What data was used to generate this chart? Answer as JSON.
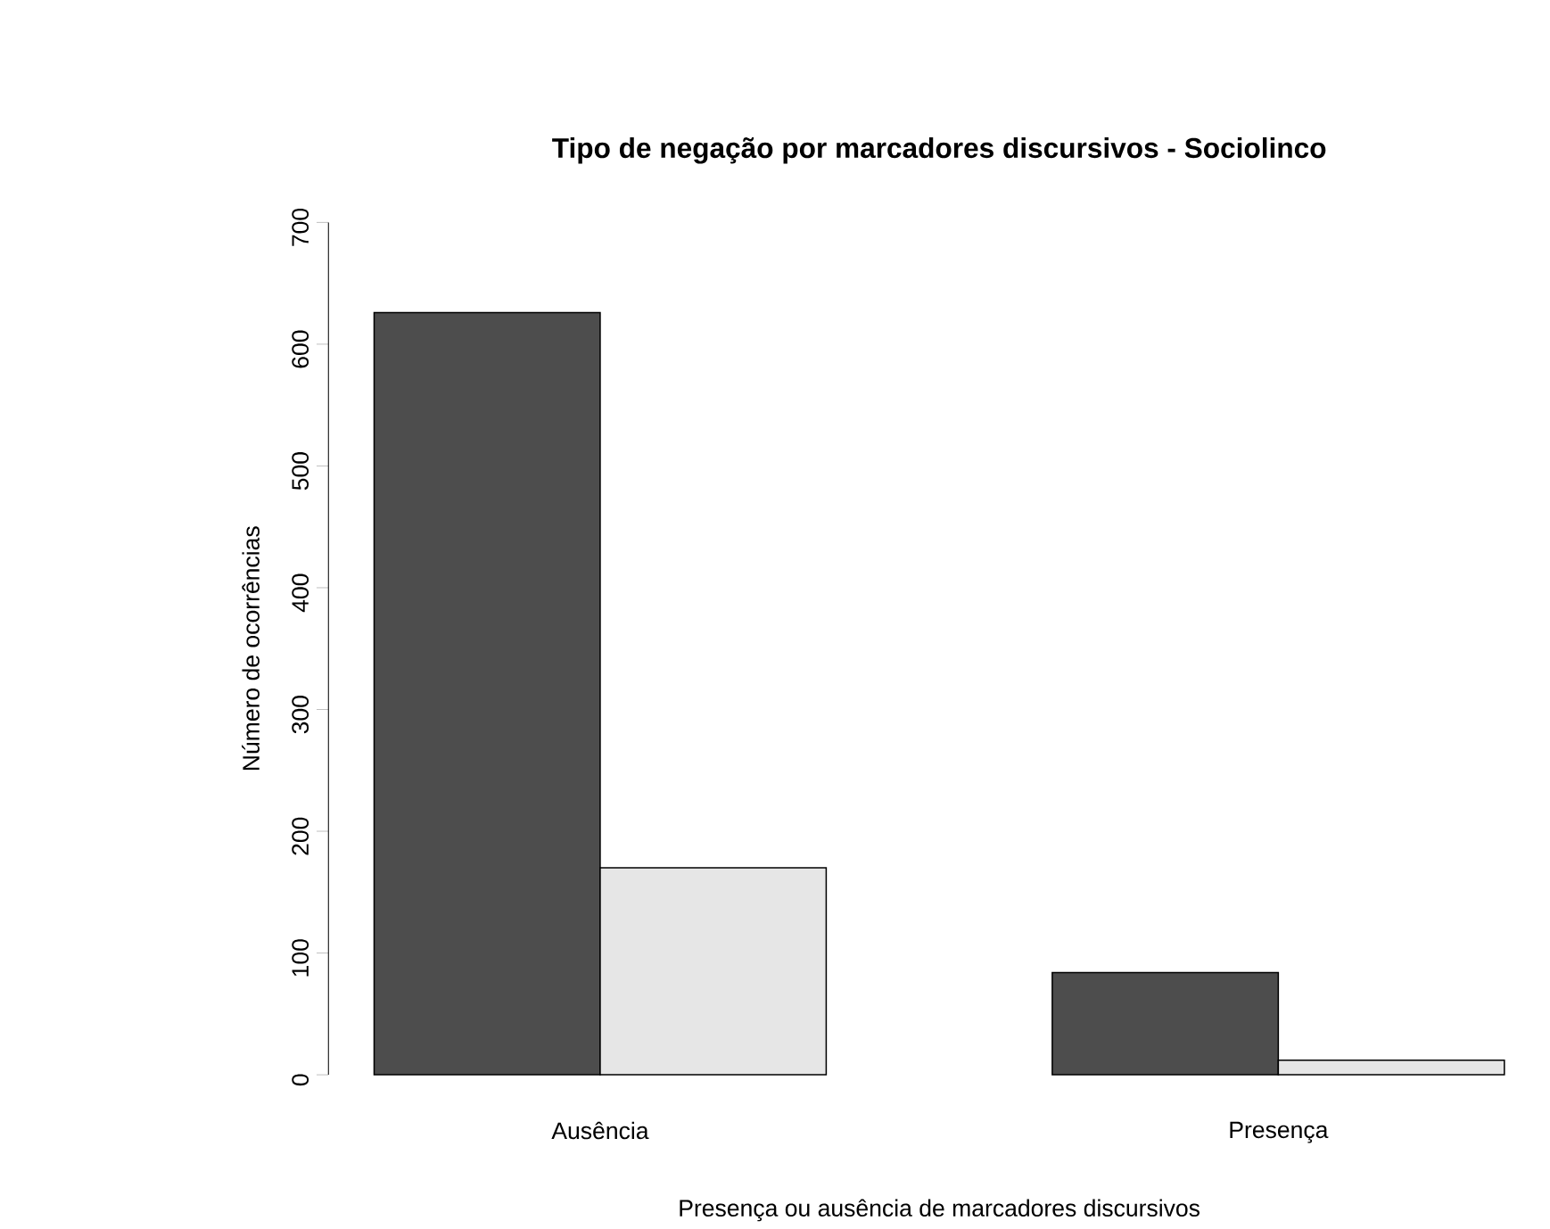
{
  "chart_data": {
    "type": "bar",
    "title": "Tipo de negação por marcadores discursivos - Sociolinco",
    "xlabel": "Presença ou ausência de marcadores discursivos",
    "ylabel": "Número de ocorrências",
    "categories": [
      "Ausência",
      "Presença"
    ],
    "series": [
      {
        "color": "#4d4d4d",
        "values": [
          626,
          84
        ]
      },
      {
        "color": "#e6e6e6",
        "values": [
          170,
          12
        ]
      }
    ],
    "ylim": [
      0,
      700
    ],
    "yticks": [
      0,
      100,
      200,
      300,
      400,
      500,
      600,
      700
    ]
  }
}
